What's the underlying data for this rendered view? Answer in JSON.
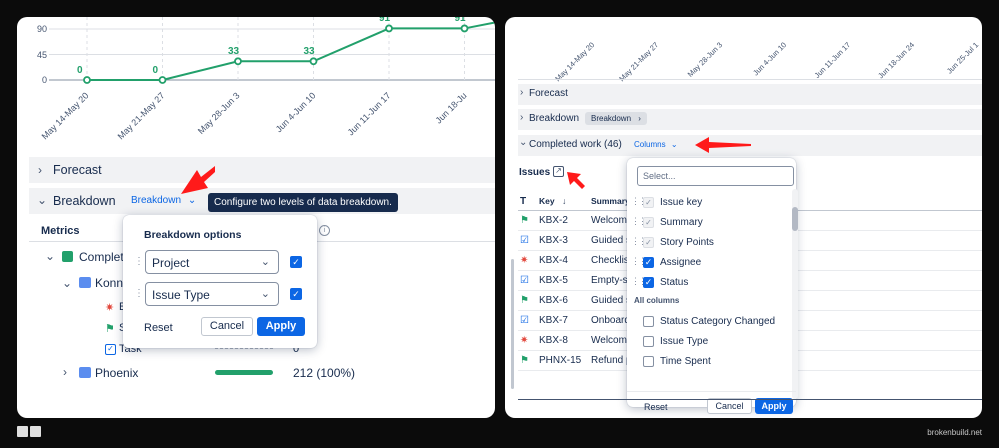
{
  "left": {
    "chart_data": {
      "type": "line",
      "categories": [
        "May 14-May 20",
        "May 21-May 27",
        "May 28-Jun 3",
        "Jun 4-Jun 10",
        "Jun 11-Jun 17",
        "Jun 18-Ju"
      ],
      "values": [
        0,
        0,
        33,
        33,
        91,
        91
      ],
      "point_labels": [
        "0",
        "0",
        "33",
        "33",
        "91",
        "91"
      ],
      "y_ticks": [
        "90",
        "45",
        "0"
      ],
      "ylim": [
        0,
        100
      ],
      "color": "#22a06b",
      "grid": true
    },
    "forecast": "Forecast",
    "breakdown": "Breakdown",
    "breakdown_button": "Breakdown",
    "tooltip": "Configure two levels of data breakdown.",
    "metrics_header": "Metrics",
    "tree": {
      "completed": "Complet",
      "konnect": "Konne",
      "bug_initial": "E",
      "story_initial": "S",
      "task": "Task",
      "task_value": "0",
      "phoenix": "Phoenix",
      "phoenix_value": "212 (100%)"
    },
    "popup": {
      "title": "Breakdown options",
      "level1": "Project",
      "level2": "Issue Type",
      "reset": "Reset",
      "cancel": "Cancel",
      "apply": "Apply"
    }
  },
  "right": {
    "x_labels": [
      "May 14-May 20",
      "May 21-May 27",
      "May 28-Jun 3",
      "Jun 4-Jun 10",
      "Jun 11-Jun 17",
      "Jun 18-Jun 24",
      "Jun 25-Jul 1"
    ],
    "forecast": "Forecast",
    "breakdown": "Breakdown",
    "breakdown_chip": "Breakdown",
    "completed": "Completed work (46)",
    "columns_button": "Columns",
    "issues_label": "Issues",
    "table_headers": {
      "type": "T",
      "key": "Key",
      "summary": "Summary"
    },
    "rows": [
      {
        "key": "KBX-2",
        "summary": "Welcome",
        "type": "story"
      },
      {
        "key": "KBX-3",
        "summary": "Guided s",
        "type": "task"
      },
      {
        "key": "KBX-4",
        "summary": "Checklist",
        "type": "bug"
      },
      {
        "key": "KBX-5",
        "summary": "Empty-st",
        "type": "task"
      },
      {
        "key": "KBX-6",
        "summary": "Guided s",
        "type": "story"
      },
      {
        "key": "KBX-7",
        "summary": "Onboard",
        "type": "task"
      },
      {
        "key": "KBX-8",
        "summary": "Welcome",
        "type": "bug"
      },
      {
        "key": "PHNX-15",
        "summary": "Refund p",
        "type": "story"
      }
    ],
    "columns_popup": {
      "search_placeholder": "Select...",
      "selected": [
        "Issue key",
        "Summary",
        "Story Points",
        "Assignee",
        "Status"
      ],
      "all_header": "All columns",
      "all": [
        "Status Category Changed",
        "Issue Type",
        "Time Spent"
      ],
      "reset": "Reset",
      "cancel": "Cancel",
      "apply": "Apply"
    }
  },
  "footer": {
    "brand": "brokenbuild.net"
  },
  "colors": {
    "accent": "#0c66e4",
    "green": "#22a06b",
    "arrow": "#ff1a1a"
  }
}
